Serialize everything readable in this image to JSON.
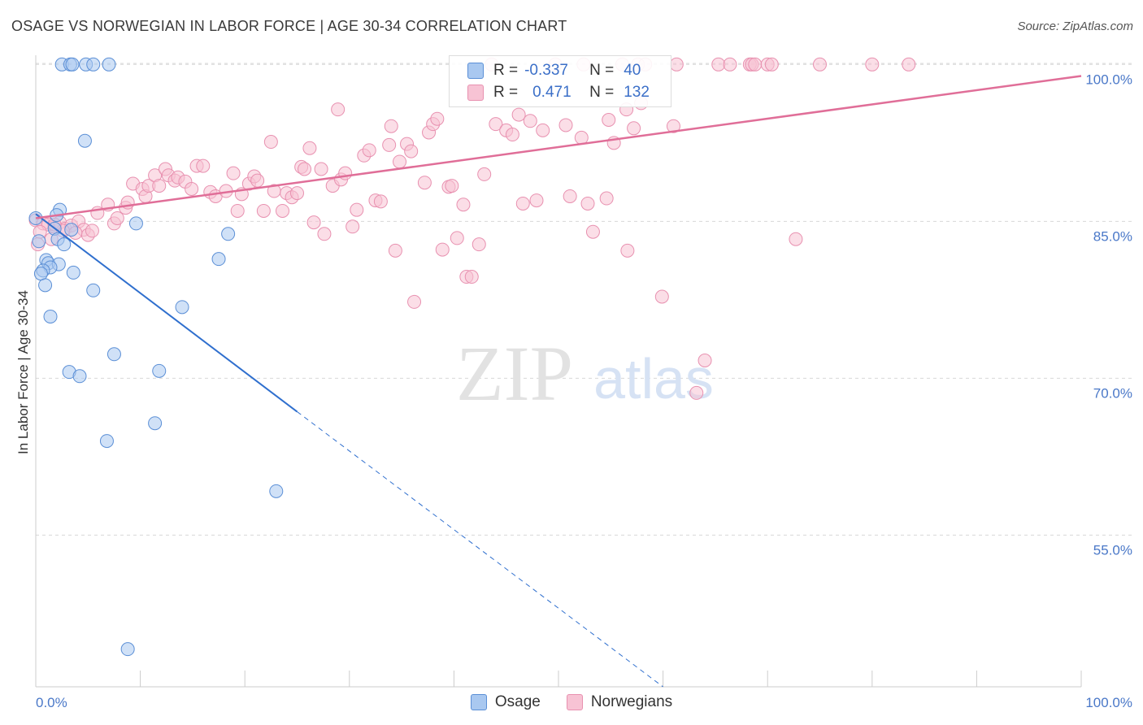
{
  "title": "OSAGE VS NORWEGIAN IN LABOR FORCE | AGE 30-34 CORRELATION CHART",
  "source": "Source: ZipAtlas.com",
  "watermark": {
    "zip": "ZIP",
    "atlas": "atlas"
  },
  "colors": {
    "osage_fill": "#a9c8f0",
    "osage_stroke": "#5b8fd6",
    "osage_line": "#2f6fce",
    "norw_fill": "#f7c3d4",
    "norw_stroke": "#e891b0",
    "norw_line": "#e06e98",
    "grid": "#d8d8d8",
    "axis_text": "#4a78c8"
  },
  "legend_top": {
    "rows": [
      {
        "series": "osage",
        "r_label": "R =",
        "r_value": "-0.337",
        "n_label": "N =",
        "n_value": "40"
      },
      {
        "series": "norwegians",
        "r_label": "R =",
        "r_value": "0.471",
        "n_label": "N =",
        "n_value": "132"
      }
    ]
  },
  "legend_bottom": {
    "items": [
      "Osage",
      "Norwegians"
    ]
  },
  "chart_data": {
    "type": "scatter",
    "title": "OSAGE VS NORWEGIAN IN LABOR FORCE | AGE 30-34 CORRELATION CHART",
    "xlabel": "",
    "ylabel": "In Labor Force | Age 30-34",
    "xlim": [
      0,
      100
    ],
    "ylim": [
      40.5,
      101.5
    ],
    "x_tick_labels": [
      "0.0%",
      "100.0%"
    ],
    "y_ticks": [
      55,
      70,
      85,
      100
    ],
    "y_tick_labels": [
      "55.0%",
      "70.0%",
      "85.0%",
      "100.0%"
    ],
    "grid": "horizontal dashed",
    "legend": "bottom-center",
    "series": [
      {
        "name": "Osage",
        "r": -0.337,
        "n": 40,
        "trend": {
          "x": [
            0,
            25
          ],
          "y": [
            85.7,
            66.8
          ],
          "dashed_to": [
            60,
            40.5
          ]
        },
        "points": [
          [
            2.5,
            100
          ],
          [
            3.3,
            100
          ],
          [
            3.5,
            100
          ],
          [
            4.8,
            100
          ],
          [
            5.5,
            100
          ],
          [
            7,
            100
          ],
          [
            4.7,
            92.7
          ],
          [
            0,
            85.3
          ],
          [
            2.3,
            86.1
          ],
          [
            2,
            85.6
          ],
          [
            1.8,
            84.3
          ],
          [
            3.4,
            84.2
          ],
          [
            9.6,
            84.8
          ],
          [
            18.4,
            83.8
          ],
          [
            0.3,
            83.1
          ],
          [
            2.1,
            83.3
          ],
          [
            2.7,
            82.8
          ],
          [
            1,
            81.3
          ],
          [
            1.2,
            81
          ],
          [
            2.2,
            80.9
          ],
          [
            1.4,
            80.6
          ],
          [
            0.7,
            80.3
          ],
          [
            0.5,
            80
          ],
          [
            3.6,
            80.1
          ],
          [
            0.9,
            78.9
          ],
          [
            5.5,
            78.4
          ],
          [
            17.5,
            81.4
          ],
          [
            1.4,
            75.9
          ],
          [
            14,
            76.8
          ],
          [
            7.5,
            72.3
          ],
          [
            3.2,
            70.6
          ],
          [
            4.2,
            70.2
          ],
          [
            11.8,
            70.7
          ],
          [
            11.4,
            65.7
          ],
          [
            6.8,
            64
          ],
          [
            23,
            59.2
          ],
          [
            8.8,
            44.1
          ]
        ]
      },
      {
        "name": "Norwegians",
        "r": 0.471,
        "n": 132,
        "trend": {
          "x": [
            0,
            100
          ],
          "y": [
            85.3,
            98.9
          ]
        },
        "points": [
          [
            0,
            85.1
          ],
          [
            0.7,
            84.8
          ],
          [
            1.2,
            84.7
          ],
          [
            1.8,
            84.5
          ],
          [
            2.3,
            84.9
          ],
          [
            2.8,
            84.3
          ],
          [
            3.4,
            84.6
          ],
          [
            4.1,
            85
          ],
          [
            4.6,
            84.2
          ],
          [
            5,
            83.7
          ],
          [
            0.4,
            84
          ],
          [
            1.5,
            83.3
          ],
          [
            2.6,
            84.1
          ],
          [
            3.8,
            83.9
          ],
          [
            5.4,
            84.1
          ],
          [
            0.2,
            82.8
          ],
          [
            1.8,
            84.7
          ],
          [
            5.9,
            85.8
          ],
          [
            6.9,
            86.6
          ],
          [
            7.5,
            84.8
          ],
          [
            7.8,
            85.3
          ],
          [
            8.6,
            86.3
          ],
          [
            8.8,
            86.8
          ],
          [
            9.3,
            88.6
          ],
          [
            10.2,
            88.1
          ],
          [
            10.5,
            87.4
          ],
          [
            10.8,
            88.4
          ],
          [
            11.4,
            89.4
          ],
          [
            11.8,
            88.4
          ],
          [
            12.4,
            90
          ],
          [
            12.7,
            89.4
          ],
          [
            13.3,
            88.9
          ],
          [
            13.6,
            89.2
          ],
          [
            14.3,
            88.8
          ],
          [
            14.9,
            88.1
          ],
          [
            15.4,
            90.3
          ],
          [
            16,
            90.3
          ],
          [
            16.7,
            87.8
          ],
          [
            17.2,
            87.4
          ],
          [
            18.2,
            87.9
          ],
          [
            18.9,
            89.6
          ],
          [
            19.3,
            86
          ],
          [
            19.7,
            87.6
          ],
          [
            20.4,
            88.6
          ],
          [
            20.9,
            89.3
          ],
          [
            21.2,
            88.9
          ],
          [
            21.8,
            86
          ],
          [
            22.5,
            92.6
          ],
          [
            22.8,
            87.9
          ],
          [
            23.6,
            86
          ],
          [
            24,
            87.7
          ],
          [
            24.5,
            87.3
          ],
          [
            25,
            87.7
          ],
          [
            25.4,
            90.2
          ],
          [
            25.7,
            90
          ],
          [
            26.2,
            92
          ],
          [
            26.6,
            84.9
          ],
          [
            27.3,
            90
          ],
          [
            27.6,
            83.8
          ],
          [
            28.4,
            88.4
          ],
          [
            28.9,
            95.7
          ],
          [
            29.2,
            89
          ],
          [
            29.6,
            89.6
          ],
          [
            30.3,
            84.5
          ],
          [
            30.7,
            86.1
          ],
          [
            31.4,
            91.3
          ],
          [
            31.9,
            91.8
          ],
          [
            32.5,
            87
          ],
          [
            33,
            86.9
          ],
          [
            33.8,
            92.3
          ],
          [
            34,
            94.1
          ],
          [
            34.4,
            82.2
          ],
          [
            34.8,
            90.7
          ],
          [
            35.5,
            92.4
          ],
          [
            35.9,
            91.7
          ],
          [
            36.2,
            77.3
          ],
          [
            37.2,
            88.7
          ],
          [
            37.6,
            93.5
          ],
          [
            38,
            94.3
          ],
          [
            38.4,
            94.8
          ],
          [
            38.9,
            82.3
          ],
          [
            39.5,
            88.3
          ],
          [
            39.8,
            88.4
          ],
          [
            40.3,
            83.4
          ],
          [
            40.9,
            86.6
          ],
          [
            41.2,
            79.7
          ],
          [
            41.7,
            79.7
          ],
          [
            42.4,
            82.8
          ],
          [
            42.9,
            89.5
          ],
          [
            43.6,
            100
          ],
          [
            44,
            94.3
          ],
          [
            45,
            93.7
          ],
          [
            45.6,
            93.3
          ],
          [
            46.2,
            95.2
          ],
          [
            46.6,
            86.7
          ],
          [
            47.3,
            94.6
          ],
          [
            47.9,
            87
          ],
          [
            48.5,
            93.7
          ],
          [
            49.7,
            100
          ],
          [
            50.7,
            94.2
          ],
          [
            51.1,
            87.4
          ],
          [
            52.2,
            93
          ],
          [
            52.4,
            100
          ],
          [
            52.8,
            86.7
          ],
          [
            53.3,
            84
          ],
          [
            54.6,
            87.2
          ],
          [
            54.8,
            94.7
          ],
          [
            55.3,
            92.5
          ],
          [
            56.1,
            100
          ],
          [
            56.5,
            95.7
          ],
          [
            56.6,
            82.2
          ],
          [
            57.2,
            93.9
          ],
          [
            57.6,
            100
          ],
          [
            57.9,
            96.3
          ],
          [
            58.3,
            100
          ],
          [
            59.9,
            77.8
          ],
          [
            61,
            94.1
          ],
          [
            61.3,
            100
          ],
          [
            64,
            71.7
          ],
          [
            63.2,
            68.6
          ],
          [
            65.3,
            100
          ],
          [
            66.4,
            100
          ],
          [
            68.3,
            100
          ],
          [
            68.5,
            100
          ],
          [
            68.8,
            100
          ],
          [
            70,
            100
          ],
          [
            70.4,
            100
          ],
          [
            72.7,
            83.3
          ],
          [
            75,
            100
          ],
          [
            80,
            100
          ],
          [
            83.5,
            100
          ]
        ]
      }
    ]
  }
}
